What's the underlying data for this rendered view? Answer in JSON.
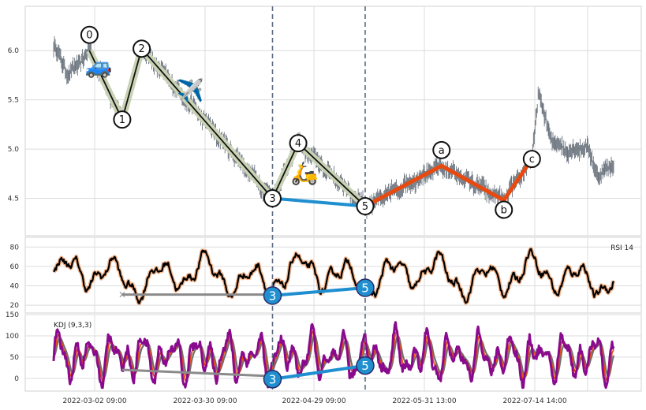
{
  "chart_data": {
    "type": "line",
    "x_tick_labels": [
      "2022-03-02 09:00",
      "2022-03-30 09:00",
      "2022-04-29 09:00",
      "2022-05-31 13:00",
      "2022-07-14 14:00"
    ],
    "price_panel": {
      "ylim": [
        4.12,
        6.45
      ],
      "yticks": [
        4.5,
        5.0,
        5.5,
        6.0
      ],
      "wave_points": [
        {
          "label": "0",
          "i": 46,
          "price": 6.0,
          "label_pos": "above"
        },
        {
          "label": "1",
          "i": 88,
          "price": 5.3,
          "label_pos": "center"
        },
        {
          "label": "2",
          "i": 113,
          "price": 6.02,
          "label_pos": "center"
        },
        {
          "label": "3",
          "i": 281,
          "price": 4.5,
          "label_pos": "center"
        },
        {
          "label": "4",
          "i": 314,
          "price": 5.06,
          "label_pos": "center"
        },
        {
          "label": "5",
          "i": 400,
          "price": 4.42,
          "label_pos": "center"
        },
        {
          "label": "a",
          "i": 498,
          "price": 4.83,
          "label_pos": "above"
        },
        {
          "label": "b",
          "i": 578,
          "price": 4.48,
          "label_pos": "below"
        },
        {
          "label": "c",
          "i": 614,
          "price": 4.9,
          "label_pos": "center"
        }
      ],
      "trend_lines": [
        {
          "from": 0,
          "to": 4,
          "color": "#111111",
          "halo": "#c9d2b4"
        },
        {
          "from": 4,
          "to": 5,
          "color": "#111111",
          "halo": "#c9d2b4"
        },
        {
          "from": 3,
          "to": 5,
          "color": "#1f8fd0",
          "halo": ""
        },
        {
          "from": 5,
          "to": 8,
          "color": "#e8490f",
          "halo": ""
        }
      ],
      "emojis": [
        {
          "name": "car-icon",
          "glyph": "🚙",
          "i": 58,
          "price": 5.85
        },
        {
          "name": "airplane-icon",
          "glyph": "✈️",
          "i": 176,
          "price": 5.6
        },
        {
          "name": "scooter-icon",
          "glyph": "🛵",
          "i": 322,
          "price": 4.76
        }
      ]
    },
    "rsi_panel": {
      "label": "RSI 14",
      "ylim": [
        12,
        90
      ],
      "yticks": [
        20,
        40,
        60,
        80
      ],
      "markers": [
        {
          "label": "3",
          "i": 281,
          "value": 30
        },
        {
          "label": "5",
          "i": 400,
          "value": 38
        }
      ],
      "support": {
        "i0": 88,
        "v0": 31,
        "i1": 281,
        "v1": 31
      }
    },
    "kdj_panel": {
      "label": "KDJ (9,3,3)",
      "ylim": [
        -30,
        150
      ],
      "yticks": [
        0,
        50,
        100,
        150
      ],
      "markers": [
        {
          "label": "3",
          "i": 281,
          "value": -2
        },
        {
          "label": "5",
          "i": 400,
          "value": 30
        }
      ],
      "support": {
        "i0": 88,
        "v0": 20,
        "i1": 281,
        "v1": 5
      }
    },
    "divergence_lines": [
      281,
      400
    ],
    "grid": true,
    "colors": {
      "price": "#5a6470",
      "rsi": "#000000",
      "rsi_halo": "#f4b48a",
      "k": "#e8490f",
      "d": "#707070",
      "j": "#8a0a8e",
      "divergence": "#1f8fd0",
      "support": "#8a8a8a",
      "vline": "#5b6b80"
    }
  }
}
